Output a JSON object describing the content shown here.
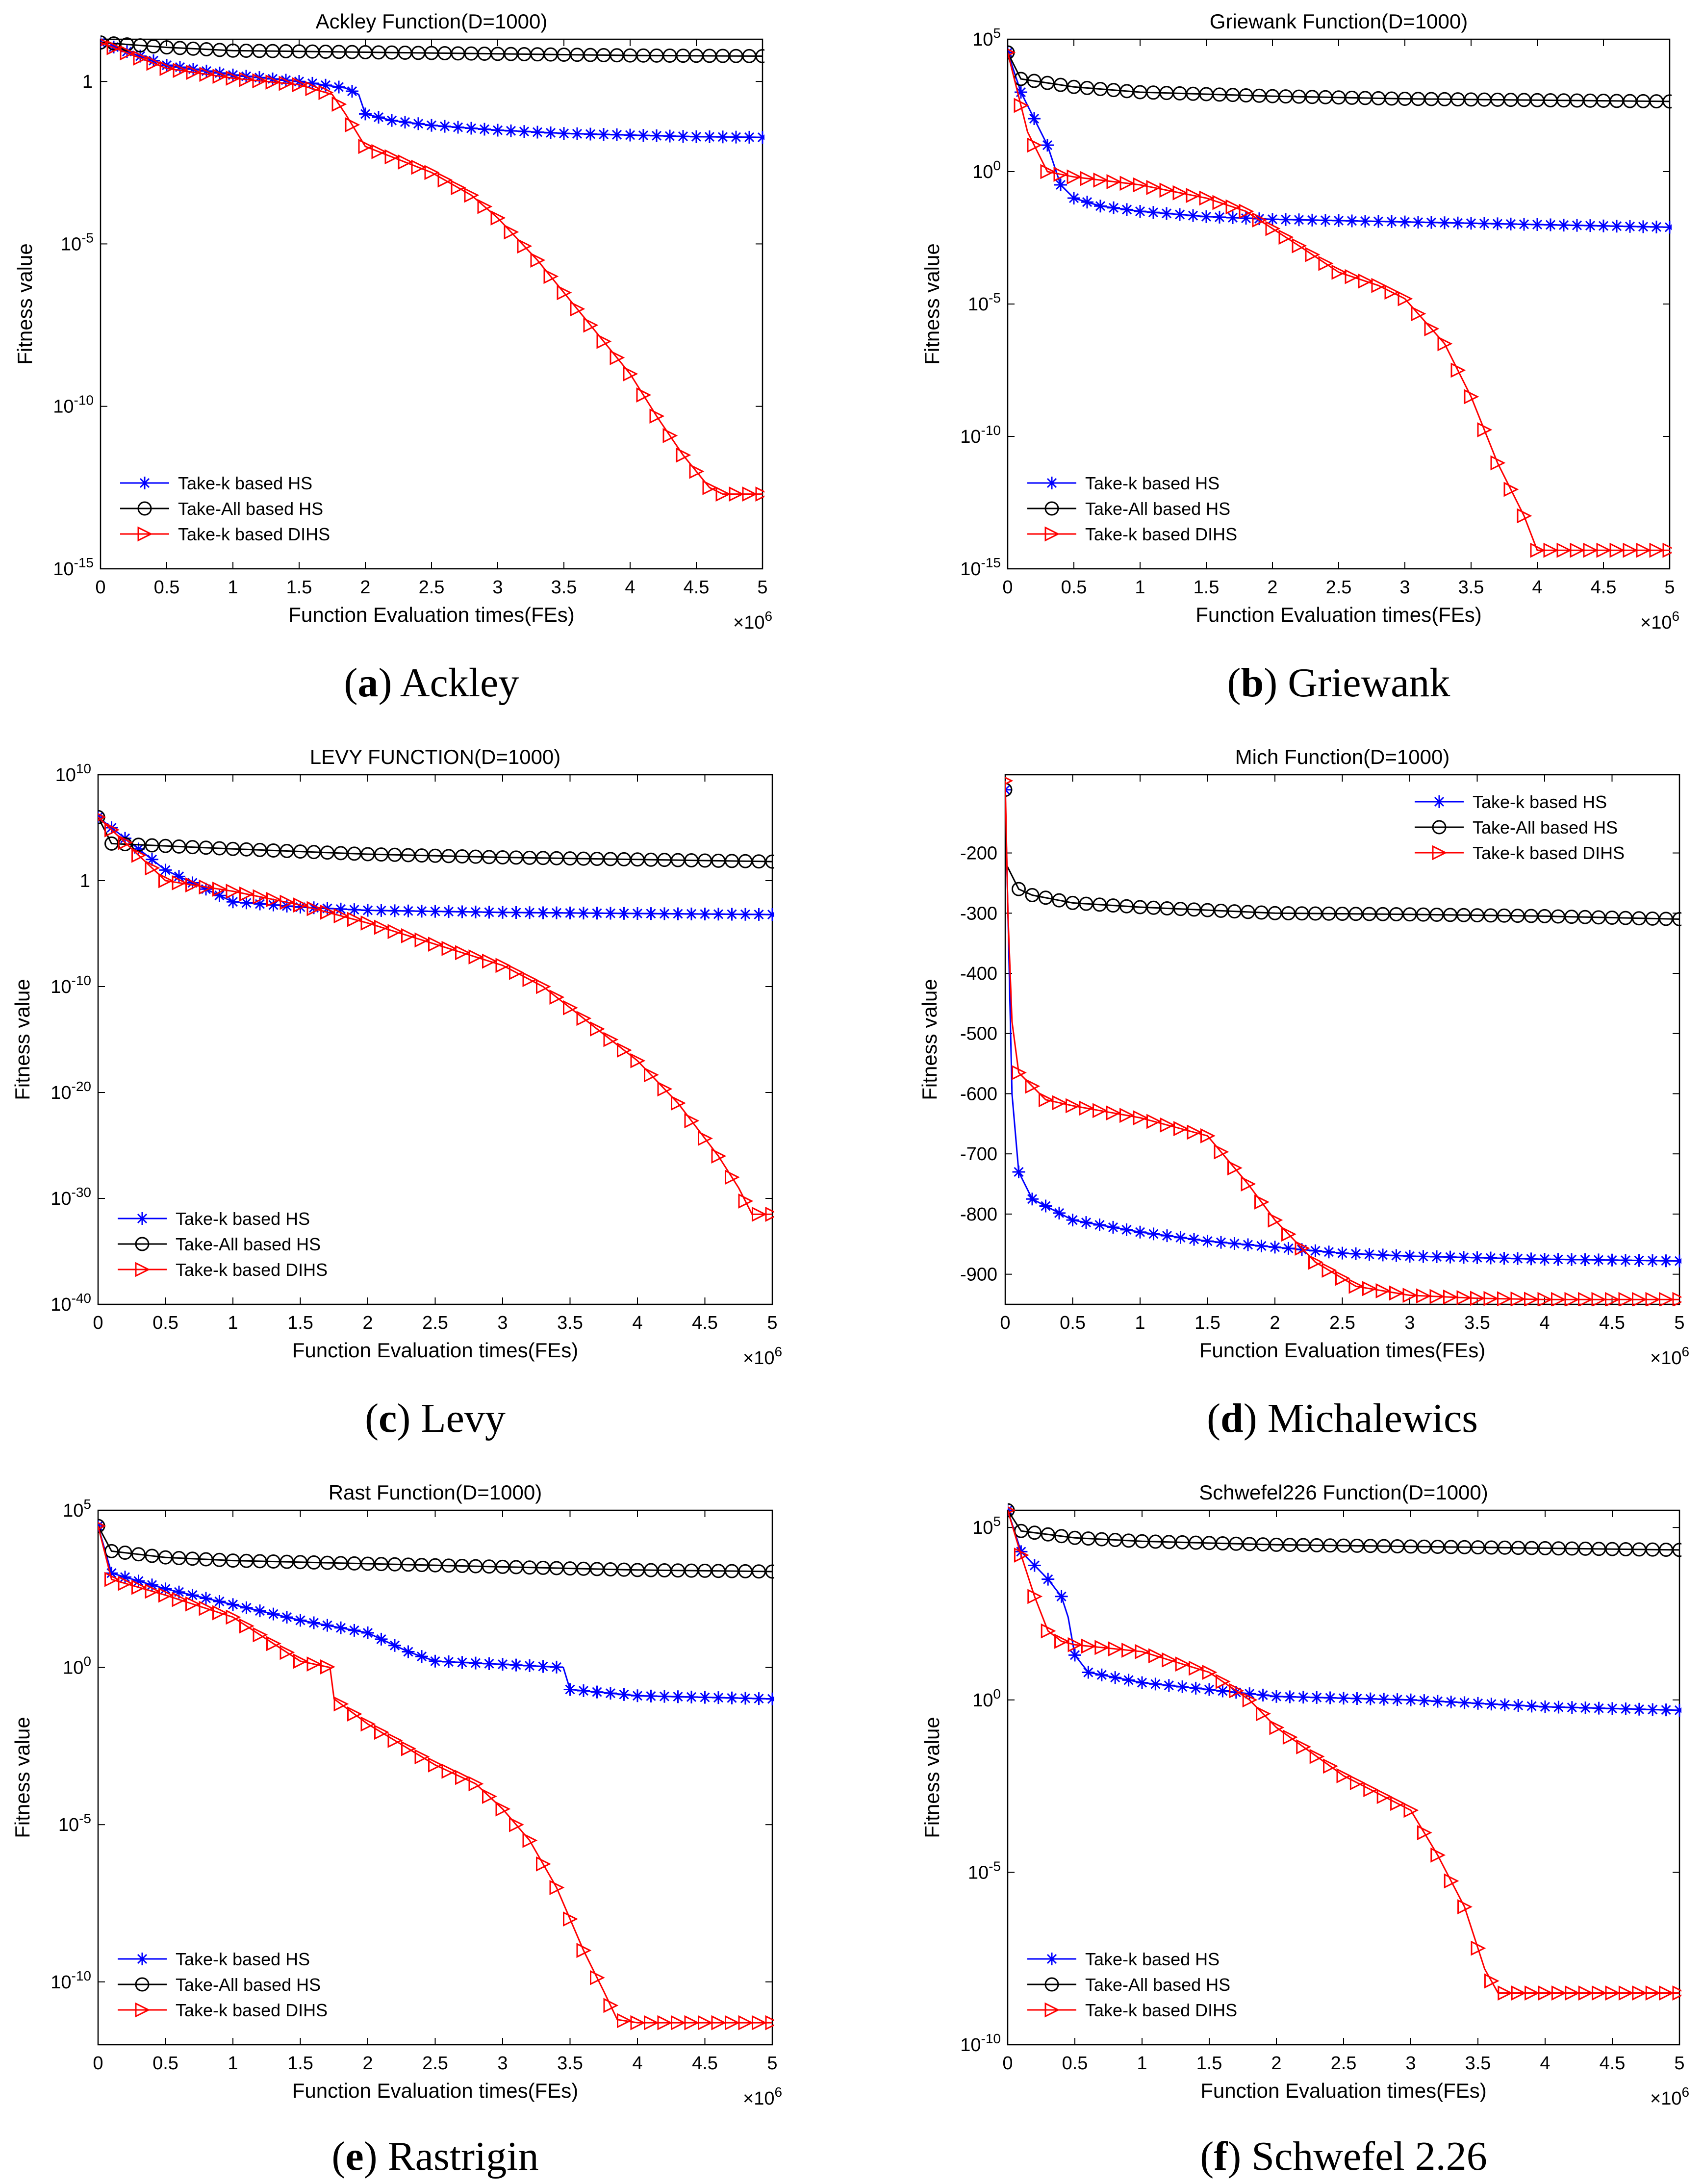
{
  "figure": {
    "background": "#ffffff"
  },
  "series_styles": [
    {
      "key": "k_hs",
      "name": "Take-k based HS",
      "color": "#0000ff",
      "marker": "asterisk"
    },
    {
      "key": "all_hs",
      "name": "Take-All based HS",
      "color": "#000000",
      "marker": "circle"
    },
    {
      "key": "k_dihs",
      "name": "Take-k based DIHS",
      "color": "#ff0000",
      "marker": "triangle-right"
    }
  ],
  "chart_data": [
    {
      "id": "a",
      "type": "line",
      "yscale": "log",
      "title": "Ackley Function(D=1000)",
      "xlabel": "Function Evaluation times(FEs)",
      "ylabel": "Fitness value",
      "x_multiplier": "×10",
      "x_multiplier_exp": "6",
      "xlim": [
        0,
        5
      ],
      "ylim_exp": [
        -15,
        1.3
      ],
      "xticks": [
        "0",
        "0.5",
        "1",
        "1.5",
        "2",
        "2.5",
        "3",
        "3.5",
        "4",
        "4.5",
        "5"
      ],
      "yticks": [
        {
          "exp": -15
        },
        {
          "exp": -10
        },
        {
          "exp": -5
        },
        {
          "exp": 0,
          "label": "10",
          "sup": "0",
          "plain": "1"
        }
      ],
      "legend_position": "bottom-left",
      "caption_letter": "a",
      "caption_text": "Ackley",
      "series": [
        {
          "key": "k_hs",
          "x": [
            0,
            0.5,
            1.0,
            1.5,
            1.85,
            1.95,
            2.0,
            2.2,
            2.5,
            3.0,
            3.5,
            4.0,
            4.5,
            5.0
          ],
          "log10_y": [
            1.2,
            0.5,
            0.2,
            0.0,
            -0.2,
            -0.4,
            -1.0,
            -1.2,
            -1.35,
            -1.5,
            -1.6,
            -1.65,
            -1.7,
            -1.72
          ]
        },
        {
          "key": "all_hs",
          "x": [
            0,
            0.5,
            1.0,
            2.0,
            3.0,
            4.0,
            5.0
          ],
          "log10_y": [
            1.2,
            1.05,
            0.95,
            0.9,
            0.85,
            0.8,
            0.78
          ]
        },
        {
          "key": "k_dihs",
          "x": [
            0,
            0.5,
            1.0,
            1.5,
            1.75,
            1.85,
            2.0,
            2.5,
            2.8,
            3.0,
            3.3,
            3.6,
            4.0,
            4.2,
            4.4,
            4.6,
            4.7,
            5.0
          ],
          "log10_y": [
            1.2,
            0.4,
            0.1,
            -0.1,
            -0.4,
            -1.0,
            -2.0,
            -2.8,
            -3.5,
            -4.2,
            -5.5,
            -7.0,
            -9.0,
            -10.3,
            -11.5,
            -12.5,
            -12.7,
            -12.7
          ]
        }
      ]
    },
    {
      "id": "b",
      "type": "line",
      "yscale": "log",
      "title": "Griewank Function(D=1000)",
      "xlabel": "Function Evaluation times(FEs)",
      "ylabel": "Fitness value",
      "x_multiplier": "×10",
      "x_multiplier_exp": "6",
      "xlim": [
        0,
        5
      ],
      "ylim_exp": [
        -15,
        5
      ],
      "xticks": [
        "0",
        "0.5",
        "1",
        "1.5",
        "2",
        "2.5",
        "3",
        "3.5",
        "4",
        "4.5",
        "5"
      ],
      "yticks": [
        {
          "exp": -15
        },
        {
          "exp": -10
        },
        {
          "exp": -5
        },
        {
          "exp": 0
        },
        {
          "exp": 5
        }
      ],
      "legend_position": "bottom-left",
      "caption_letter": "b",
      "caption_text": "Griewank",
      "series": [
        {
          "key": "k_hs",
          "x": [
            0,
            0.1,
            0.2,
            0.3,
            0.4,
            0.5,
            0.7,
            1.0,
            1.5,
            2.0,
            3.0,
            4.0,
            5.0
          ],
          "log10_y": [
            4.5,
            3.0,
            2.0,
            1.0,
            -0.5,
            -1.0,
            -1.3,
            -1.5,
            -1.7,
            -1.8,
            -1.9,
            -2.0,
            -2.1
          ]
        },
        {
          "key": "all_hs",
          "x": [
            0,
            0.1,
            0.5,
            1.0,
            2.0,
            3.0,
            4.0,
            5.0
          ],
          "log10_y": [
            4.5,
            3.5,
            3.2,
            3.0,
            2.85,
            2.75,
            2.7,
            2.65
          ]
        },
        {
          "key": "k_dihs",
          "x": [
            0,
            0.15,
            0.3,
            0.5,
            1.0,
            1.5,
            1.8,
            2.2,
            2.5,
            2.8,
            3.0,
            3.3,
            3.5,
            3.7,
            3.9,
            4.0,
            5.0
          ],
          "log10_y": [
            4.5,
            1.5,
            0.0,
            -0.2,
            -0.5,
            -1.0,
            -1.5,
            -2.8,
            -3.8,
            -4.3,
            -4.8,
            -6.5,
            -8.5,
            -11.0,
            -13.0,
            -14.3,
            -14.3
          ]
        }
      ]
    },
    {
      "id": "c",
      "type": "line",
      "yscale": "log",
      "title": "LEVY FUNCTION(D=1000)",
      "xlabel": "Function Evaluation times(FEs)",
      "ylabel": "Fitness value",
      "x_multiplier": "×10",
      "x_multiplier_exp": "6",
      "xlim": [
        0,
        5
      ],
      "ylim_exp": [
        -40,
        10
      ],
      "xticks": [
        "0",
        "0.5",
        "1",
        "1.5",
        "2",
        "2.5",
        "3",
        "3.5",
        "4",
        "4.5",
        "5"
      ],
      "yticks": [
        {
          "exp": -40
        },
        {
          "exp": -30
        },
        {
          "exp": -20
        },
        {
          "exp": -10
        },
        {
          "exp": 0,
          "plain": "1"
        },
        {
          "exp": 10
        }
      ],
      "legend_position": "bottom-left",
      "caption_letter": "c",
      "caption_text": "Levy",
      "series": [
        {
          "key": "k_hs",
          "x": [
            0,
            0.5,
            1.0,
            1.5,
            2.0,
            3.0,
            4.0,
            5.0
          ],
          "log10_y": [
            6.0,
            1.0,
            -2.0,
            -2.5,
            -2.8,
            -3.0,
            -3.1,
            -3.2
          ]
        },
        {
          "key": "all_hs",
          "x": [
            0,
            0.1,
            1.0,
            2.0,
            3.0,
            4.0,
            5.0
          ],
          "log10_y": [
            6.0,
            3.5,
            3.0,
            2.5,
            2.2,
            2.0,
            1.8
          ]
        },
        {
          "key": "k_dihs",
          "x": [
            0,
            0.5,
            1.0,
            1.5,
            2.0,
            2.5,
            3.0,
            3.3,
            3.6,
            4.0,
            4.3,
            4.6,
            4.75,
            4.85,
            5.0
          ],
          "log10_y": [
            6.0,
            0.0,
            -1.0,
            -2.3,
            -4.0,
            -6.0,
            -8.0,
            -10.0,
            -13.0,
            -17.0,
            -21.0,
            -26.0,
            -29.0,
            -31.5,
            -31.5
          ]
        }
      ]
    },
    {
      "id": "d",
      "type": "line",
      "yscale": "linear",
      "title": "Mich Function(D=1000)",
      "xlabel": "Function Evaluation times(FEs)",
      "ylabel": "Fitness value",
      "x_multiplier": "×10",
      "x_multiplier_exp": "6",
      "xlim": [
        0,
        5
      ],
      "ylim": [
        -950,
        -70
      ],
      "xticks": [
        "0",
        "0.5",
        "1",
        "1.5",
        "2",
        "2.5",
        "3",
        "3.5",
        "4",
        "4.5",
        "5"
      ],
      "ytick_labels": [
        "-200",
        "-300",
        "-400",
        "-500",
        "-600",
        "-700",
        "-800",
        "-900"
      ],
      "legend_position": "top-right",
      "caption_letter": "d",
      "caption_text": "Michalewics",
      "series": [
        {
          "key": "k_hs",
          "x": [
            0,
            0.02,
            0.05,
            0.1,
            0.2,
            0.5,
            1.0,
            1.5,
            2.0,
            2.5,
            3.0,
            4.0,
            5.0
          ],
          "log10_y": [
            -95,
            -300,
            -600,
            -730,
            -775,
            -810,
            -830,
            -845,
            -855,
            -865,
            -870,
            -875,
            -878
          ]
        },
        {
          "key": "all_hs",
          "x": [
            0,
            0.01,
            0.1,
            0.2,
            0.5,
            1.0,
            1.5,
            2.0,
            3.0,
            4.0,
            5.0
          ],
          "log10_y": [
            -95,
            -220,
            -260,
            -270,
            -283,
            -290,
            -295,
            -300,
            -302,
            -305,
            -310
          ]
        },
        {
          "key": "k_dihs",
          "x": [
            0,
            0.02,
            0.05,
            0.1,
            0.3,
            0.5,
            1.0,
            1.5,
            1.8,
            2.0,
            2.3,
            2.6,
            3.0,
            3.5,
            4.0,
            5.0
          ],
          "log10_y": [
            -80,
            -300,
            -480,
            -565,
            -610,
            -620,
            -640,
            -670,
            -750,
            -810,
            -880,
            -920,
            -935,
            -940,
            -942,
            -942
          ]
        }
      ]
    },
    {
      "id": "e",
      "type": "line",
      "yscale": "log",
      "title": "Rast Function(D=1000)",
      "xlabel": "Function Evaluation times(FEs)",
      "ylabel": "Fitness value",
      "x_multiplier": "×10",
      "x_multiplier_exp": "6",
      "xlim": [
        0,
        5
      ],
      "ylim_exp": [
        -12,
        5
      ],
      "xticks": [
        "0",
        "0.5",
        "1",
        "1.5",
        "2",
        "2.5",
        "3",
        "3.5",
        "4",
        "4.5",
        "5"
      ],
      "yticks": [
        {
          "exp": -10
        },
        {
          "exp": -5
        },
        {
          "exp": 0
        },
        {
          "exp": 5
        }
      ],
      "legend_position": "bottom-left",
      "caption_letter": "e",
      "caption_text": "Rastrigin",
      "series": [
        {
          "key": "k_hs",
          "x": [
            0,
            0.1,
            0.5,
            1.0,
            1.5,
            2.0,
            2.3,
            2.5,
            3.0,
            3.45,
            3.5,
            4.0,
            5.0
          ],
          "log10_y": [
            4.5,
            3.0,
            2.5,
            2.0,
            1.5,
            1.1,
            0.5,
            0.2,
            0.1,
            0.0,
            -0.7,
            -0.9,
            -1.0
          ]
        },
        {
          "key": "all_hs",
          "x": [
            0,
            0.1,
            0.5,
            1.0,
            2.0,
            3.0,
            4.0,
            5.0
          ],
          "log10_y": [
            4.5,
            3.7,
            3.5,
            3.4,
            3.3,
            3.2,
            3.1,
            3.05
          ]
        },
        {
          "key": "k_dihs",
          "x": [
            0,
            0.1,
            0.5,
            1.0,
            1.5,
            1.72,
            1.75,
            2.0,
            2.5,
            2.8,
            3.0,
            3.2,
            3.4,
            3.6,
            3.75,
            3.85,
            4.0,
            5.0
          ],
          "log10_y": [
            4.5,
            2.8,
            2.3,
            1.6,
            0.2,
            0.0,
            -1.0,
            -1.8,
            -3.1,
            -3.7,
            -4.5,
            -5.5,
            -7.0,
            -9.0,
            -10.3,
            -11.2,
            -11.3,
            -11.3
          ]
        }
      ]
    },
    {
      "id": "f",
      "type": "line",
      "yscale": "log",
      "title": "Schwefel226 Function(D=1000)",
      "xlabel": "Function Evaluation times(FEs)",
      "ylabel": "Fitness value",
      "x_multiplier": "×10",
      "x_multiplier_exp": "6",
      "xlim": [
        0,
        5
      ],
      "ylim_exp": [
        -10,
        5.5
      ],
      "xticks": [
        "0",
        "0.5",
        "1",
        "1.5",
        "2",
        "2.5",
        "3",
        "3.5",
        "4",
        "4.5",
        "5"
      ],
      "yticks": [
        {
          "exp": -10
        },
        {
          "exp": -5
        },
        {
          "exp": 0
        },
        {
          "exp": 5
        }
      ],
      "legend_position": "bottom-left",
      "caption_letter": "f",
      "caption_text": "Schwefel 2.26",
      "series": [
        {
          "key": "k_hs",
          "x": [
            0,
            0.1,
            0.3,
            0.4,
            0.45,
            0.5,
            0.6,
            1.0,
            1.5,
            2.0,
            3.0,
            4.0,
            5.0
          ],
          "log10_y": [
            5.5,
            4.3,
            3.5,
            3.0,
            2.4,
            1.3,
            0.8,
            0.5,
            0.3,
            0.1,
            0.0,
            -0.2,
            -0.3
          ]
        },
        {
          "key": "all_hs",
          "x": [
            0,
            0.1,
            0.5,
            1.0,
            2.0,
            3.0,
            4.0,
            5.0
          ],
          "log10_y": [
            5.5,
            4.9,
            4.7,
            4.6,
            4.5,
            4.45,
            4.4,
            4.35
          ]
        },
        {
          "key": "k_dihs",
          "x": [
            0,
            0.1,
            0.2,
            0.3,
            0.4,
            0.5,
            1.0,
            1.5,
            1.8,
            2.0,
            2.5,
            2.8,
            3.0,
            3.2,
            3.4,
            3.55,
            3.65,
            3.8,
            5.0
          ],
          "log10_y": [
            5.5,
            4.2,
            3.0,
            2.0,
            1.7,
            1.6,
            1.4,
            0.8,
            0.0,
            -0.8,
            -2.2,
            -2.8,
            -3.2,
            -4.5,
            -6.0,
            -7.8,
            -8.5,
            -8.5,
            -8.5
          ]
        }
      ]
    }
  ]
}
